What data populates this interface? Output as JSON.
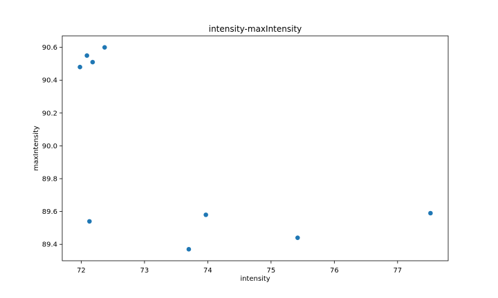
{
  "chart_data": {
    "type": "scatter",
    "title": "intensity-maxIntensity",
    "xlabel": "intensity",
    "ylabel": "maxIntensity",
    "xlim": [
      71.7,
      77.8
    ],
    "ylim": [
      89.3,
      90.67
    ],
    "xticks": [
      72,
      73,
      74,
      75,
      76,
      77
    ],
    "yticks": [
      89.4,
      89.6,
      89.8,
      90.0,
      90.2,
      90.4,
      90.6
    ],
    "grid": false,
    "marker_color": "#1f77b4",
    "points": [
      {
        "x": 71.98,
        "y": 90.48
      },
      {
        "x": 72.09,
        "y": 90.55
      },
      {
        "x": 72.18,
        "y": 90.51
      },
      {
        "x": 72.37,
        "y": 90.6
      },
      {
        "x": 72.13,
        "y": 89.54
      },
      {
        "x": 73.7,
        "y": 89.37
      },
      {
        "x": 73.97,
        "y": 89.58
      },
      {
        "x": 75.42,
        "y": 89.44
      },
      {
        "x": 77.52,
        "y": 89.59
      }
    ]
  }
}
